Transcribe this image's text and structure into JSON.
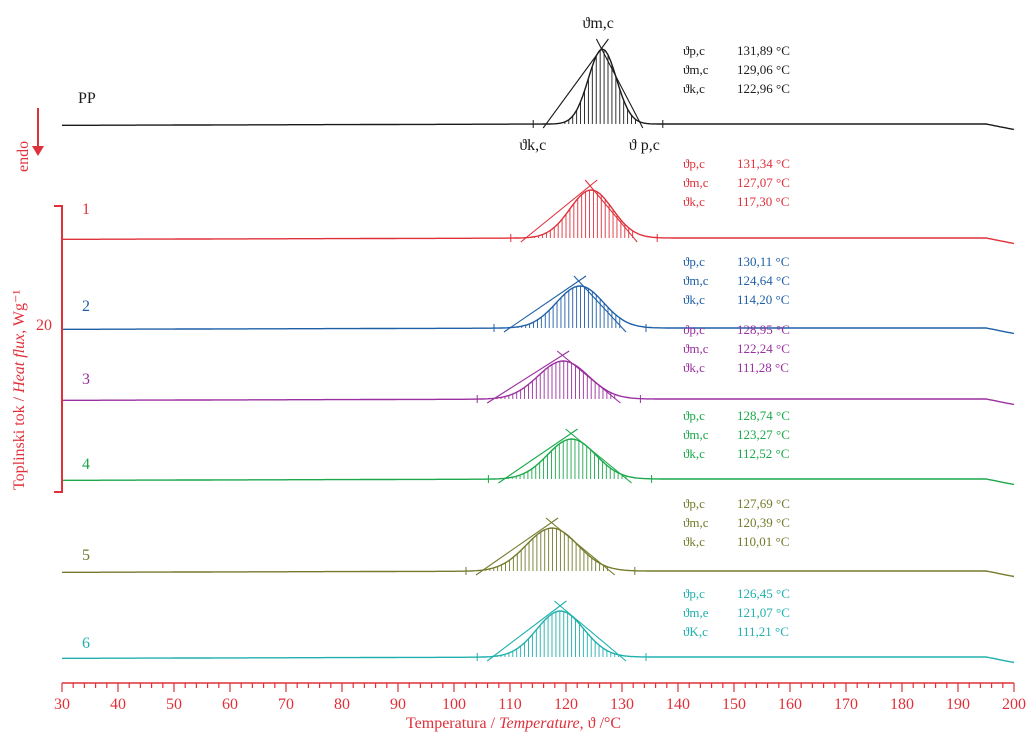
{
  "chart_data": {
    "type": "line",
    "xlabel": "Temperatura / ",
    "xlabel_italic": "Temperature",
    "xlabel_unit": ",  ϑ /°C",
    "ylabel": "Toplinski tok / ",
    "ylabel_italic": "Heat flux",
    "ylabel_unit": ", Wg⁻¹",
    "endo_label": "endo",
    "scale_bar_label": "20",
    "xlim": [
      30,
      200
    ],
    "xticks": [
      "30",
      "40",
      "50",
      "60",
      "70",
      "80",
      "90",
      "100",
      "110",
      "120",
      "130",
      "140",
      "150",
      "160",
      "170",
      "180",
      "190",
      "200"
    ],
    "peak_label": "ϑm,c",
    "onset_label": "ϑk,c",
    "end_label": "ϑ p,c",
    "series": [
      {
        "name": "PP",
        "color": "#1a1a1a",
        "peak_x": 126.5,
        "start_x": 117,
        "end_x": 133,
        "width": 2.5,
        "height": 75,
        "annotations": [
          {
            "sym": "ϑp,c",
            "val": "131,89 °C"
          },
          {
            "sym": "ϑm,c",
            "val": "129,06 °C"
          },
          {
            "sym": "ϑk,c",
            "val": "122,96 °C"
          }
        ]
      },
      {
        "name": "1",
        "color": "#e0303a",
        "peak_x": 124.5,
        "start_x": 113,
        "end_x": 132,
        "width": 3.8,
        "height": 48,
        "annotations": [
          {
            "sym": "ϑp,c",
            "val": "131,34 °C"
          },
          {
            "sym": "ϑm,c",
            "val": "127,07 °C"
          },
          {
            "sym": "ϑk,c",
            "val": "117,30 °C"
          }
        ]
      },
      {
        "name": "2",
        "color": "#1f5fa8",
        "peak_x": 122.5,
        "start_x": 110,
        "end_x": 130,
        "width": 4.2,
        "height": 42,
        "annotations": [
          {
            "sym": "ϑp,c",
            "val": "130,11 °C"
          },
          {
            "sym": "ϑm,c",
            "val": "124,64 °C"
          },
          {
            "sym": "ϑk,c",
            "val": "114,20 °C"
          }
        ]
      },
      {
        "name": "3",
        "color": "#9a2fa0",
        "peak_x": 119.5,
        "start_x": 107,
        "end_x": 129,
        "width": 4.5,
        "height": 38,
        "annotations": [
          {
            "sym": "ϑp,c",
            "val": "128,95 °C"
          },
          {
            "sym": "ϑm,c",
            "val": "122,24 °C"
          },
          {
            "sym": "ϑk,c",
            "val": "111,28 °C"
          }
        ]
      },
      {
        "name": "4",
        "color": "#1aa84a",
        "peak_x": 121.0,
        "start_x": 109,
        "end_x": 131,
        "width": 4.3,
        "height": 40,
        "annotations": [
          {
            "sym": "ϑp,c",
            "val": "128,74 °C"
          },
          {
            "sym": "ϑm,c",
            "val": "123,27 °C"
          },
          {
            "sym": "ϑk,c",
            "val": "112,52 °C"
          }
        ]
      },
      {
        "name": "5",
        "color": "#757a2c",
        "peak_x": 117.5,
        "start_x": 105,
        "end_x": 128,
        "width": 4.6,
        "height": 43,
        "annotations": [
          {
            "sym": "ϑp,c",
            "val": "127,69 °C"
          },
          {
            "sym": "ϑm,c",
            "val": "120,39 °C"
          },
          {
            "sym": "ϑk,c",
            "val": "110,01 °C"
          }
        ]
      },
      {
        "name": "6",
        "color": "#1fb0ad",
        "peak_x": 119.0,
        "start_x": 107,
        "end_x": 130,
        "width": 4.2,
        "height": 46,
        "annotations": [
          {
            "sym": "ϑp,c",
            "val": "126,45 °C"
          },
          {
            "sym": "ϑm,e",
            "val": "121,07 °C"
          },
          {
            "sym": "ϑK,c",
            "val": "111,21 °C"
          }
        ]
      }
    ]
  },
  "colors": {
    "axis": "#e0303a",
    "accent": "#e0303a"
  }
}
